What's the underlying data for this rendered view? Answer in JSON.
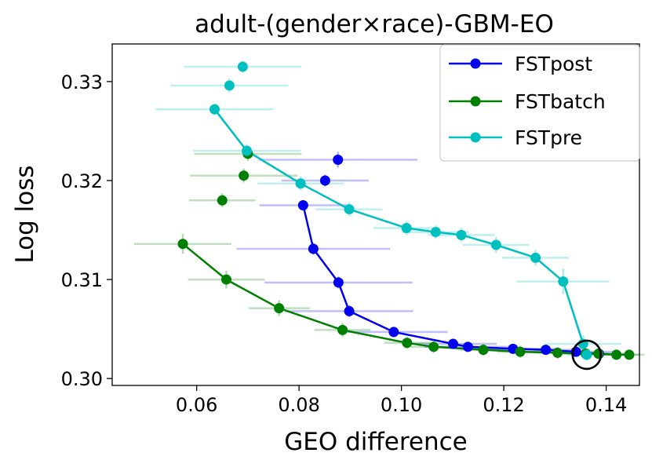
{
  "chart_data": {
    "type": "line",
    "title": "adult-(gender×race)-GBM-EO",
    "xlabel": "GEO difference",
    "ylabel": "Log loss",
    "xlim": [
      0.0435,
      0.1465
    ],
    "ylim": [
      0.2993,
      0.3338
    ],
    "xticks": [
      0.06,
      0.08,
      0.1,
      0.12,
      0.14
    ],
    "xtick_labels": [
      "0.06",
      "0.08",
      "0.10",
      "0.12",
      "0.14"
    ],
    "yticks": [
      0.3,
      0.31,
      0.32,
      0.33
    ],
    "ytick_labels": [
      "0.30",
      "0.31",
      "0.32",
      "0.33"
    ],
    "grid": false,
    "legend_position": "top-right",
    "series": [
      {
        "name": "FSTpost",
        "color": "#0000ee",
        "connected": [
          {
            "x": 0.0808,
            "y": 0.3175,
            "xerr": 0.0085,
            "yerr": 0.0005
          },
          {
            "x": 0.0828,
            "y": 0.3131,
            "xerr": 0.015,
            "yerr": 0.0006
          },
          {
            "x": 0.0877,
            "y": 0.3097,
            "xerr": 0.0145,
            "yerr": 0.0006
          },
          {
            "x": 0.0898,
            "y": 0.3068,
            "xerr": 0.0125,
            "yerr": 0.0006
          },
          {
            "x": 0.0985,
            "y": 0.3047,
            "xerr": 0.0105,
            "yerr": 0.0005
          },
          {
            "x": 0.1101,
            "y": 0.3035,
            "xerr": 0.0085,
            "yerr": 0.0005
          },
          {
            "x": 0.113,
            "y": 0.3032,
            "xerr": 0.0085,
            "yerr": 0.0005
          },
          {
            "x": 0.1218,
            "y": 0.303,
            "xerr": 0.0085,
            "yerr": 0.0005
          },
          {
            "x": 0.1282,
            "y": 0.3029,
            "xerr": 0.0085,
            "yerr": 0.0005
          },
          {
            "x": 0.1341,
            "y": 0.3027,
            "xerr": 0.0085,
            "yerr": 0.0005
          },
          {
            "x": 0.1386,
            "y": 0.3025,
            "xerr": 0.0055,
            "yerr": 0.0004
          }
        ],
        "isolated": [
          {
            "x": 0.0876,
            "y": 0.3221,
            "xerr": 0.0155,
            "yerr": 0.0008
          },
          {
            "x": 0.0851,
            "y": 0.32,
            "xerr": 0.0085,
            "yerr": 0.0006
          }
        ]
      },
      {
        "name": "FSTbatch",
        "color": "#008000",
        "connected": [
          {
            "x": 0.0573,
            "y": 0.3136,
            "xerr": 0.0095,
            "yerr": 0.001
          },
          {
            "x": 0.0658,
            "y": 0.31,
            "xerr": 0.0075,
            "yerr": 0.0009
          },
          {
            "x": 0.0761,
            "y": 0.3071,
            "xerr": 0.006,
            "yerr": 0.0008
          },
          {
            "x": 0.0885,
            "y": 0.3049,
            "xerr": 0.0055,
            "yerr": 0.0007
          },
          {
            "x": 0.1011,
            "y": 0.3036,
            "xerr": 0.0045,
            "yerr": 0.0006
          },
          {
            "x": 0.1063,
            "y": 0.3032,
            "xerr": 0.0045,
            "yerr": 0.0006
          },
          {
            "x": 0.116,
            "y": 0.3029,
            "xerr": 0.0045,
            "yerr": 0.0006
          },
          {
            "x": 0.1232,
            "y": 0.3027,
            "xerr": 0.0045,
            "yerr": 0.0006
          },
          {
            "x": 0.1305,
            "y": 0.3026,
            "xerr": 0.0045,
            "yerr": 0.0006
          },
          {
            "x": 0.136,
            "y": 0.3025,
            "xerr": 0.0045,
            "yerr": 0.0006
          },
          {
            "x": 0.1385,
            "y": 0.3025,
            "xerr": 0.0045,
            "yerr": 0.0005
          },
          {
            "x": 0.142,
            "y": 0.3024,
            "xerr": 0.0045,
            "yerr": 0.0005
          },
          {
            "x": 0.1445,
            "y": 0.3024,
            "xerr": 0.003,
            "yerr": 0.0005
          }
        ],
        "isolated": [
          {
            "x": 0.07,
            "y": 0.3227,
            "xerr": 0.0105,
            "yerr": 0.0007
          },
          {
            "x": 0.0692,
            "y": 0.3205,
            "xerr": 0.0105,
            "yerr": 0.0007
          },
          {
            "x": 0.065,
            "y": 0.318,
            "xerr": 0.0065,
            "yerr": 0.0007
          }
        ]
      },
      {
        "name": "FSTpre",
        "color": "#00bfbf",
        "connected": [
          {
            "x": 0.0635,
            "y": 0.3272,
            "xerr": 0.0115,
            "yerr": 0.0006
          },
          {
            "x": 0.0698,
            "y": 0.323,
            "xerr": 0.0105,
            "yerr": 0.0007
          },
          {
            "x": 0.0803,
            "y": 0.3197,
            "xerr": 0.0085,
            "yerr": 0.0007
          },
          {
            "x": 0.0898,
            "y": 0.3171,
            "xerr": 0.0065,
            "yerr": 0.0007
          },
          {
            "x": 0.101,
            "y": 0.3152,
            "xerr": 0.0065,
            "yerr": 0.0007
          },
          {
            "x": 0.1067,
            "y": 0.3148,
            "xerr": 0.0065,
            "yerr": 0.0007
          },
          {
            "x": 0.1117,
            "y": 0.3145,
            "xerr": 0.0065,
            "yerr": 0.0007
          },
          {
            "x": 0.1185,
            "y": 0.3135,
            "xerr": 0.0065,
            "yerr": 0.0008
          },
          {
            "x": 0.1262,
            "y": 0.3122,
            "xerr": 0.0065,
            "yerr": 0.0008
          },
          {
            "x": 0.1316,
            "y": 0.3098,
            "xerr": 0.009,
            "yerr": 0.0013
          },
          {
            "x": 0.1355,
            "y": 0.3035,
            "xerr": 0.0075,
            "yerr": 0.0009
          },
          {
            "x": 0.1362,
            "y": 0.3024,
            "xerr": 0.004,
            "yerr": 0.0006
          }
        ],
        "isolated": [
          {
            "x": 0.069,
            "y": 0.3315,
            "xerr": 0.0115,
            "yerr": 0.0006
          },
          {
            "x": 0.0664,
            "y": 0.3296,
            "xerr": 0.0115,
            "yerr": 0.0007
          }
        ]
      }
    ],
    "highlight": {
      "x": 0.1362,
      "y": 0.3024,
      "shape": "open-circle",
      "color": "#000000"
    }
  }
}
